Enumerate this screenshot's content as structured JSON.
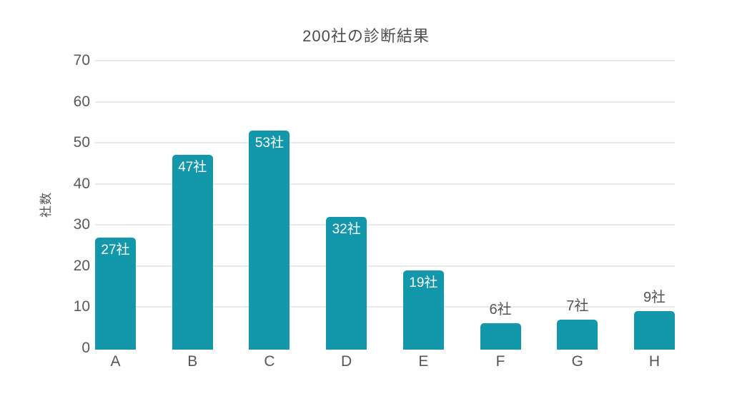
{
  "title": "200社の診断結果",
  "chart_data": {
    "type": "bar",
    "title": "200社の診断結果",
    "categories": [
      "A",
      "B",
      "C",
      "D",
      "E",
      "F",
      "G",
      "H"
    ],
    "values": [
      27,
      47,
      53,
      32,
      19,
      6,
      7,
      9
    ],
    "value_labels": [
      "27社",
      "47社",
      "53社",
      "32社",
      "19社",
      "6社",
      "7社",
      "9社"
    ],
    "xlabel": "",
    "ylabel": "社数",
    "ylim": [
      0,
      70
    ],
    "yticks": [
      0,
      10,
      20,
      30,
      40,
      50,
      60,
      70
    ],
    "grid": true,
    "legend": "none",
    "bar_color": "#1297ab",
    "gridline_color": "#e8e8e8",
    "inside_label_color": "#ffffff",
    "outside_label_color": "#555555"
  }
}
